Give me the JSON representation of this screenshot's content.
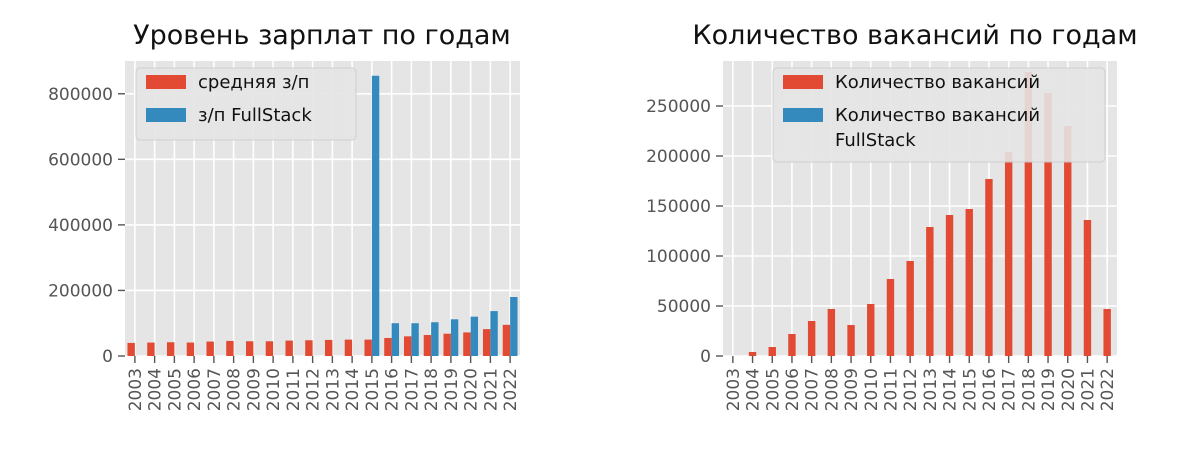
{
  "chart_data": [
    {
      "type": "bar",
      "title": "Уровень зарплат по годам",
      "xlabel": "",
      "ylabel": "",
      "categories": [
        "2003",
        "2004",
        "2005",
        "2006",
        "2007",
        "2008",
        "2009",
        "2010",
        "2011",
        "2012",
        "2013",
        "2014",
        "2015",
        "2016",
        "2017",
        "2018",
        "2019",
        "2020",
        "2021",
        "2022"
      ],
      "ylim": [
        0,
        900000
      ],
      "yticks": [
        0,
        200000,
        400000,
        600000,
        800000
      ],
      "ytick_labels": [
        "0",
        "200000",
        "400000",
        "600000",
        "800000"
      ],
      "grid": true,
      "legend_position": "top-left",
      "series": [
        {
          "name": "средняя з/п",
          "color": "#E24A33",
          "values": [
            40000,
            41000,
            42000,
            41000,
            44000,
            46000,
            45000,
            45000,
            47000,
            48000,
            49000,
            50000,
            50000,
            55000,
            60000,
            64000,
            68000,
            72000,
            82000,
            95000
          ]
        },
        {
          "name": "з/п FullStack",
          "color": "#348ABD",
          "values": [
            0,
            0,
            0,
            0,
            0,
            0,
            0,
            0,
            0,
            0,
            0,
            0,
            855000,
            100000,
            100000,
            103000,
            112000,
            120000,
            137000,
            180000
          ]
        }
      ]
    },
    {
      "type": "bar",
      "title": "Количество вакансий по годам",
      "xlabel": "",
      "ylabel": "",
      "categories": [
        "2003",
        "2004",
        "2005",
        "2006",
        "2007",
        "2008",
        "2009",
        "2010",
        "2011",
        "2012",
        "2013",
        "2014",
        "2015",
        "2016",
        "2017",
        "2018",
        "2019",
        "2020",
        "2021",
        "2022"
      ],
      "ylim": [
        0,
        295000
      ],
      "yticks": [
        0,
        50000,
        100000,
        150000,
        200000,
        250000
      ],
      "ytick_labels": [
        "0",
        "50000",
        "100000",
        "150000",
        "200000",
        "250000"
      ],
      "grid": true,
      "legend_position": "top-right",
      "series": [
        {
          "name": "Количество вакансий",
          "color": "#E24A33",
          "values": [
            0,
            4000,
            9000,
            22000,
            35000,
            47000,
            31000,
            52000,
            77000,
            95000,
            129000,
            141000,
            147000,
            177000,
            204000,
            284000,
            263000,
            230000,
            136000,
            47000
          ]
        },
        {
          "name": "Количество вакансий\nFullStack",
          "color": "#348ABD",
          "values": [
            0,
            0,
            0,
            0,
            0,
            0,
            0,
            0,
            0,
            0,
            0,
            0,
            0,
            0,
            0,
            0,
            0,
            0,
            0,
            0
          ]
        }
      ]
    }
  ]
}
